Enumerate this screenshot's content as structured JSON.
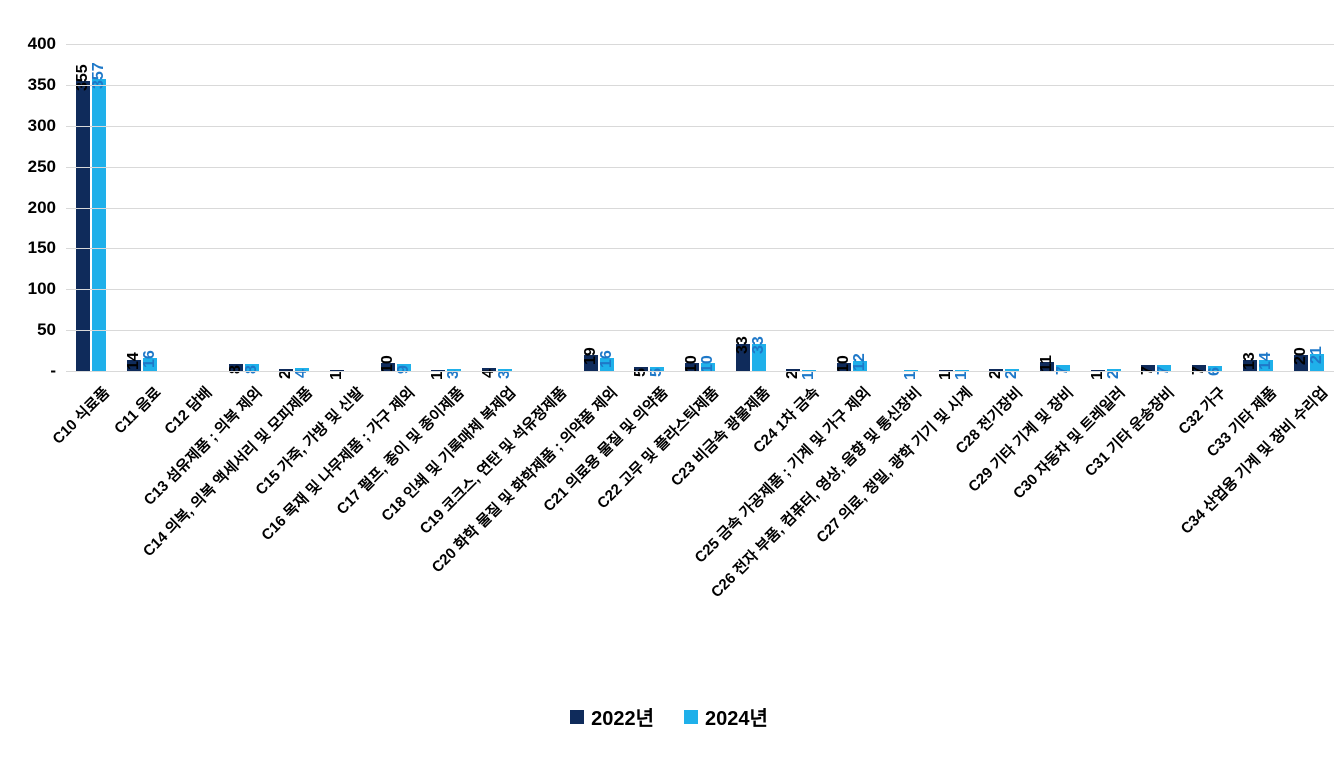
{
  "chart_data": {
    "type": "bar",
    "title": "",
    "xlabel": "",
    "ylabel": "",
    "categories": [
      "C10 식료품",
      "C11 음료",
      "C12 담배",
      "C13 섬유제품 ; 의복 제외",
      "C14 의복, 의복 액세서리 및 모피제품",
      "C15 가죽, 가방 및 신발",
      "C16 목재 및 나무제품 ; 가구 제외",
      "C17 펄프, 종이 및 종이제품",
      "C18 인쇄 및 기록매체 복제업",
      "C19 코크스, 연탄 및 석유정제품",
      "C20 화학 물질 및 화학제품 ; 의약품 제외",
      "C21 의료용 물질 및 의약품",
      "C22 고무 및 플라스틱제품",
      "C23 비금속 광물제품",
      "C24 1차 금속",
      "C25 금속 가공제품 ; 기계 및 가구 제외",
      "C26 전자 부품, 컴퓨터, 영상, 음향 및 통신장비",
      "C27 의료, 정밀, 광학 기기 및 시계",
      "C28 전기장비",
      "C29 기타 기계 및 장비",
      "C30 자동차 및 트레일러",
      "C31 기타 운송장비",
      "C32 가구",
      "C33 기타 제품",
      "C34 산업용 기계 및 장비 수리업"
    ],
    "series": [
      {
        "name": "2022년",
        "color": "#0F2B5B",
        "label_color": "#000000",
        "values": [
          355,
          14,
          null,
          8,
          2,
          1,
          10,
          1,
          4,
          null,
          19,
          5,
          10,
          33,
          2,
          10,
          null,
          1,
          2,
          11,
          1,
          7,
          7,
          13,
          20
        ]
      },
      {
        "name": "2024년",
        "color": "#1FB0EA",
        "label_color": "#1E78C8",
        "values": [
          357,
          16,
          null,
          8,
          4,
          null,
          9,
          3,
          3,
          null,
          16,
          5,
          10,
          33,
          1,
          12,
          1,
          1,
          2,
          7,
          2,
          7,
          6,
          14,
          21
        ]
      }
    ],
    "y_axis": {
      "min": 0,
      "max": 400,
      "tick_step": 50,
      "tick_labels": [
        "400",
        "350",
        "300",
        "250",
        "200",
        "150",
        "100",
        "50",
        "-"
      ]
    },
    "grid": true,
    "gridline_color": "#D9D9D9",
    "background_color": "#FFFFFF",
    "legend_position": "bottom"
  }
}
